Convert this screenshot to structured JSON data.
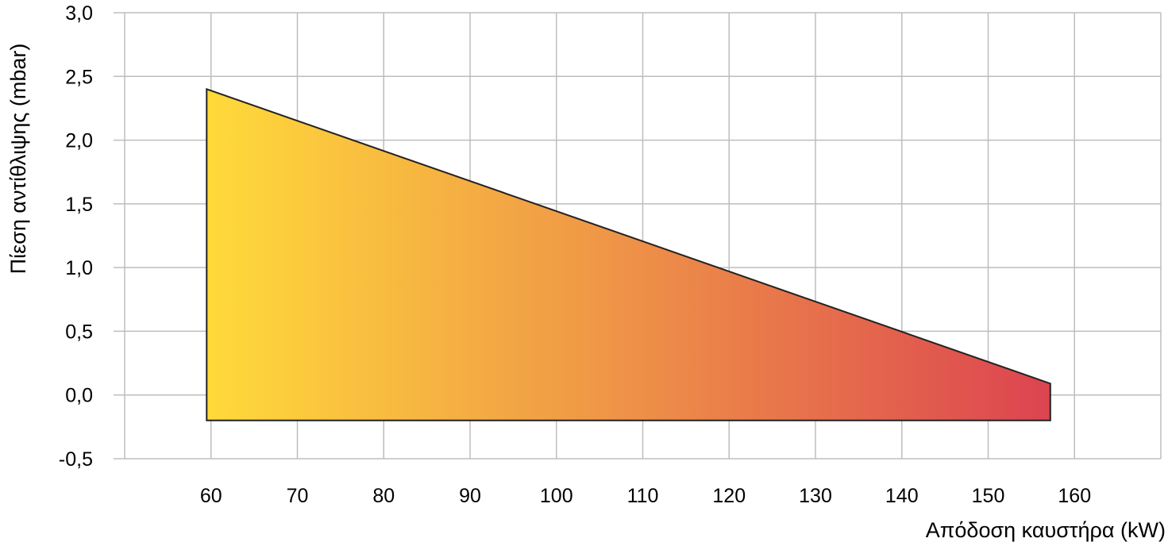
{
  "chart_data": {
    "type": "area",
    "xlabel": "Απόδοση καυστήρα (kW)",
    "ylabel": "Πίεση αντίθλιψης (mbar)",
    "xlim": [
      50,
      170
    ],
    "ylim": [
      -0.5,
      3.0
    ],
    "x_ticks": [
      60,
      70,
      80,
      90,
      100,
      110,
      120,
      130,
      140,
      150,
      160
    ],
    "y_ticks": [
      3.0,
      2.5,
      2.0,
      1.5,
      1.0,
      0.5,
      0.0,
      -0.5
    ],
    "y_tick_labels": [
      "3,0",
      "2,5",
      "2,0",
      "1,5",
      "1,0",
      "0,5",
      "0,0",
      "-0,5"
    ],
    "grid": true,
    "region": {
      "upper": [
        {
          "x": 59.5,
          "y": 2.4
        },
        {
          "x": 157.2,
          "y": 0.09
        }
      ],
      "lower": [
        {
          "x": 59.5,
          "y": -0.2
        },
        {
          "x": 157.2,
          "y": -0.2
        }
      ]
    },
    "gradient_colors": [
      "#ffda3a",
      "#ee9248",
      "#dc4450"
    ],
    "outline_color": "#222222"
  }
}
